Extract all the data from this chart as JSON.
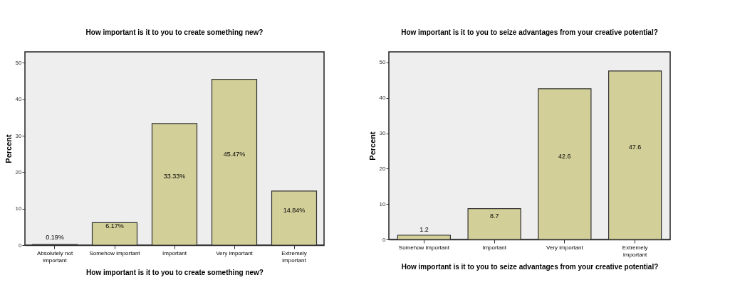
{
  "chart_data": [
    {
      "type": "bar",
      "title": "How important is it to you to create something new?",
      "xlabel": "How important is it to you to create something new?",
      "ylabel": "Percent",
      "categories": [
        "Absolutely not important",
        "Somehow important",
        "Important",
        "Very important",
        "Extremely important"
      ],
      "values": [
        0.19,
        6.17,
        33.33,
        45.47,
        14.84
      ],
      "value_labels": [
        "0.19%",
        "6.17%",
        "33.33%",
        "45.47%",
        "14.84%"
      ],
      "color": "#d3cf99",
      "ylim": [
        0,
        53
      ],
      "yticks": [
        0,
        10,
        20,
        30,
        40,
        50
      ],
      "grid": false,
      "legend": false
    },
    {
      "type": "bar",
      "title": "How important is it to you to seize advantages from your creative potential?",
      "xlabel": "How important is it to you to seize advantages from your creative potential?",
      "ylabel": "Percent",
      "categories": [
        "Somehow important",
        "Important",
        "Very important",
        "Extremely important"
      ],
      "values": [
        1.2,
        8.7,
        42.6,
        47.6
      ],
      "data_labels": true,
      "color": "#d3cf99",
      "ylim": [
        0,
        53
      ],
      "yticks": [
        0,
        10,
        20,
        30,
        40,
        50
      ],
      "grid": false,
      "legend": false
    }
  ]
}
